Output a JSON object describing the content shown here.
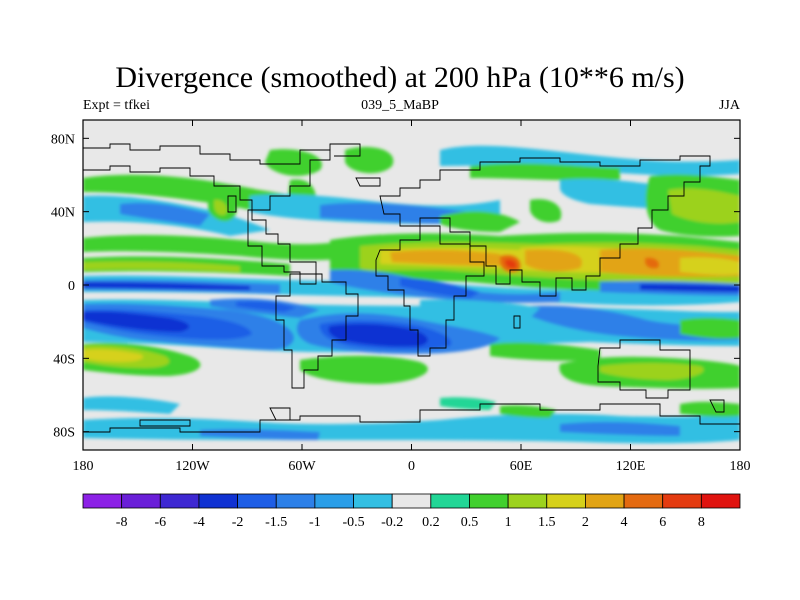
{
  "title": "Divergence (smoothed) at 200 hPa (10**6 m/s)",
  "header": {
    "left": "Expt = tfkei",
    "center": "039_5_MaBP",
    "right": "JJA"
  },
  "map": {
    "x_ticks": [
      {
        "lon": -180,
        "label": "180"
      },
      {
        "lon": -120,
        "label": "120W"
      },
      {
        "lon": -60,
        "label": "60W"
      },
      {
        "lon": 0,
        "label": "0"
      },
      {
        "lon": 60,
        "label": "60E"
      },
      {
        "lon": 120,
        "label": "120E"
      },
      {
        "lon": 180,
        "label": "180"
      }
    ],
    "y_ticks": [
      {
        "lat": 80,
        "label": "80N"
      },
      {
        "lat": 40,
        "label": "40N"
      },
      {
        "lat": 0,
        "label": "0"
      },
      {
        "lat": -40,
        "label": "40S"
      },
      {
        "lat": -80,
        "label": "80S"
      }
    ],
    "lon_range": [
      -180,
      180
    ],
    "lat_range": [
      -90,
      90
    ]
  },
  "colorbar": {
    "labels": [
      "-8",
      "-6",
      "-4",
      "-2",
      "-1.5",
      "-1",
      "-0.5",
      "-0.2",
      "0.2",
      "0.5",
      "1",
      "1.5",
      "2",
      "4",
      "6",
      "8"
    ],
    "colors": [
      "#8c21e6",
      "#6a1fd8",
      "#3e28d2",
      "#1032d2",
      "#1e5ee6",
      "#2d80e8",
      "#2a9ee8",
      "#33bfe3",
      "#e8e8e8",
      "#22d696",
      "#41d02e",
      "#9cd21e",
      "#d6d11a",
      "#e2a414",
      "#e46a10",
      "#e43b10",
      "#e0130f"
    ]
  },
  "field_colors": {
    "neutral": "#e8e8e8",
    "light_blue": "#33bfe3",
    "blue": "#2d80e8",
    "mid_blue": "#1e5ee6",
    "deep_blue": "#1032d2",
    "green_cyan": "#22d696",
    "green": "#41d02e",
    "yellow_green": "#9cd21e",
    "yellow": "#d6d11a",
    "orange": "#e2a414",
    "red_orange": "#e46a10",
    "red": "#e43b10"
  }
}
